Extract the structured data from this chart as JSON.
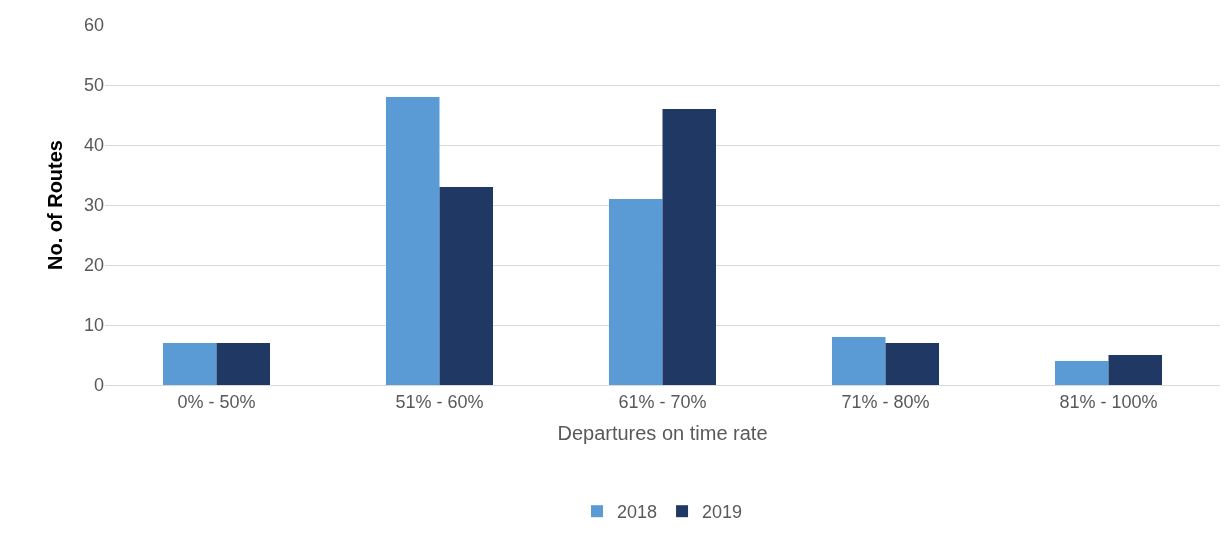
{
  "chart_data": {
    "type": "bar",
    "xlabel": "Departures on time rate",
    "ylabel": "No. of Routes",
    "categories": [
      "0% - 50%",
      "51% - 60%",
      "61% - 70%",
      "71% - 80%",
      "81% - 100%"
    ],
    "series": [
      {
        "name": "2018",
        "color": "#5b9bd5",
        "values": [
          7,
          48,
          31,
          8,
          4
        ]
      },
      {
        "name": "2019",
        "color": "#203864",
        "values": [
          7,
          33,
          46,
          7,
          5
        ]
      }
    ],
    "ylim": [
      0,
      60
    ],
    "yticks": [
      0,
      10,
      20,
      30,
      40,
      50,
      60
    ],
    "grid": "y",
    "legend": "bottom"
  }
}
